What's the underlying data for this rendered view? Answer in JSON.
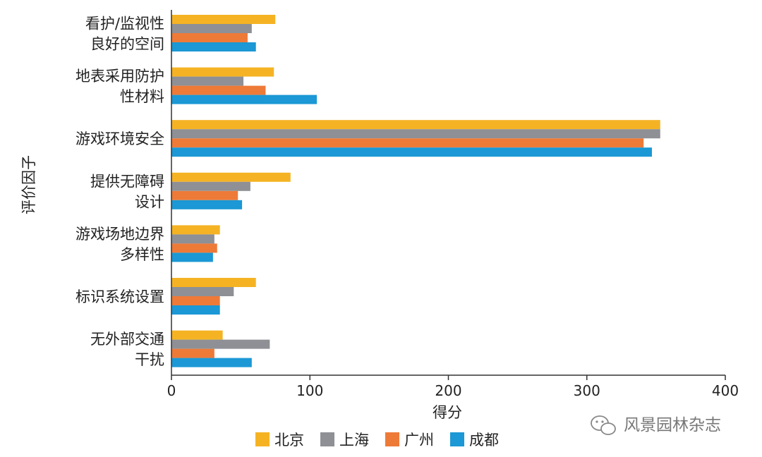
{
  "chart_data": {
    "type": "bar",
    "orientation": "horizontal",
    "categories": [
      [
        "看护/监视性",
        "良好的空间"
      ],
      [
        "地表采用防护",
        "性材料"
      ],
      [
        "游戏环境安全"
      ],
      [
        "提供无障碍",
        "设计"
      ],
      [
        "游戏场地边界",
        "多样性"
      ],
      [
        "标识系统设置"
      ],
      [
        "无外部交通",
        "干扰"
      ]
    ],
    "series": [
      {
        "name": "北京",
        "color": "#f5b324",
        "values": [
          75,
          74,
          353,
          86,
          35,
          61,
          37
        ]
      },
      {
        "name": "上海",
        "color": "#8e9095",
        "values": [
          58,
          52,
          353,
          57,
          31,
          45,
          71
        ]
      },
      {
        "name": "广州",
        "color": "#ee7a38",
        "values": [
          55,
          68,
          341,
          48,
          33,
          35,
          31
        ]
      },
      {
        "name": "成都",
        "color": "#1b98d5",
        "values": [
          61,
          105,
          347,
          51,
          30,
          35,
          58
        ]
      }
    ],
    "xlabel": "得分",
    "ylabel": "评价因子",
    "xlim": [
      0,
      400
    ],
    "xticks": [
      0,
      100,
      200,
      300,
      400
    ],
    "grid": false,
    "legend": "bottom"
  },
  "watermark": {
    "text": "风景园林杂志",
    "icon": "wechat-icon"
  }
}
